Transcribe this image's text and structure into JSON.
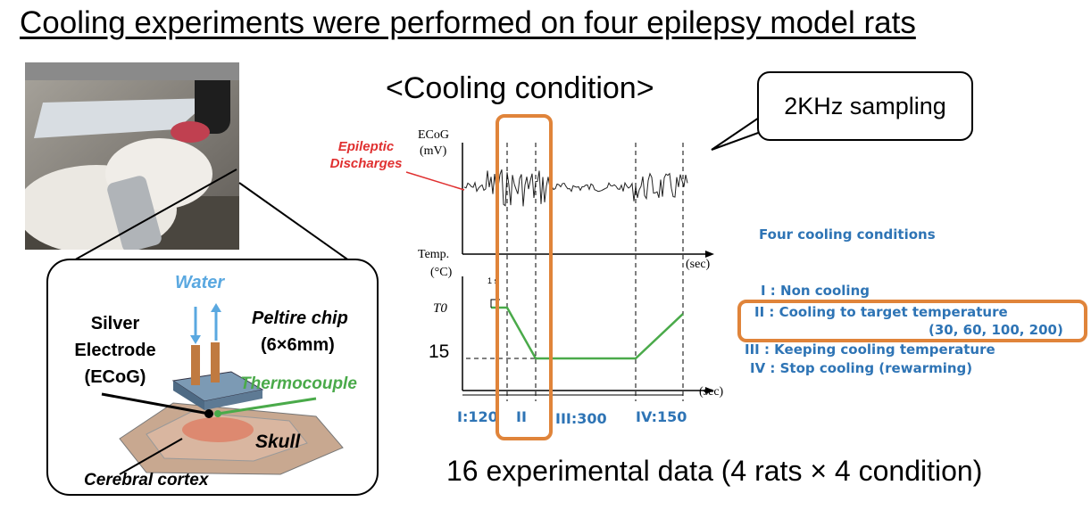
{
  "title": "Cooling experiments were performed on four epilepsy model rats",
  "inset": {
    "water": "Water",
    "silver_electrode": "Silver Electrode (ECoG)",
    "peltier": "Peltire chip",
    "peltier_size": "(6×6mm)",
    "thermocouple": "Thermocouple",
    "skull": "Skull",
    "cortex": "Cerebral cortex"
  },
  "cooling": {
    "title": "<Cooling condition>",
    "bubble": "2KHz sampling",
    "ecog_label": "ECoG",
    "ecog_unit": "(mV)",
    "epileptic": "Epileptic Discharges",
    "temp_label": "Temp.",
    "temp_unit": "(°C)",
    "sec1": "(sec)",
    "sec2": "(sec)",
    "t0": "T0",
    "fifteen": "15",
    "one_s": "1 s",
    "phase_labels": [
      "I:120",
      "II",
      "III:300",
      "IV:150"
    ]
  },
  "conditions": {
    "heading": "Four cooling conditions",
    "items": [
      "I : Non cooling",
      "II : Cooling to target temperature",
      "(30, 60, 100, 200)",
      "III : Keeping cooling temperature",
      "IV : Stop cooling (rewarming)"
    ]
  },
  "summary": "16 experimental data (4 rats × 4 condition)",
  "colors": {
    "highlight": "#e0843a",
    "blue": "#2e74b5",
    "red": "#e03030",
    "green": "#4aaa4a"
  }
}
